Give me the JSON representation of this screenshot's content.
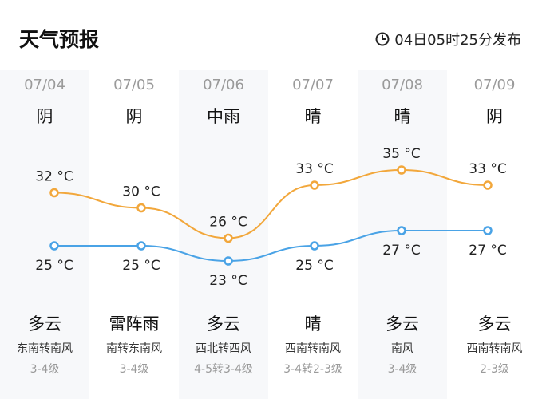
{
  "header": {
    "title": "天气预报",
    "publish_time": "04日05时25分发布",
    "clock_icon": "clock-icon"
  },
  "colors": {
    "high_line": "#F2A73B",
    "low_line": "#4AA3E6"
  },
  "chart_data": {
    "type": "line",
    "x": [
      "07/04",
      "07/05",
      "07/06",
      "07/07",
      "07/08",
      "07/09"
    ],
    "series": [
      {
        "values": [
          32,
          30,
          26,
          33,
          35,
          33
        ],
        "labels": [
          "32 °C",
          "30 °C",
          "26 °C",
          "33 °C",
          "35 °C",
          "33 °C"
        ]
      },
      {
        "values": [
          25,
          25,
          23,
          25,
          27,
          27
        ],
        "labels": [
          "25 °C",
          "25 °C",
          "23 °C",
          "25 °C",
          "27 °C",
          "27 °C"
        ]
      }
    ],
    "grid": false,
    "legend": "none"
  },
  "days": [
    {
      "date": "07/04",
      "day_weather": "阴",
      "night_weather": "多云",
      "wind": "东南转南风",
      "level": "3-4级"
    },
    {
      "date": "07/05",
      "day_weather": "阴",
      "night_weather": "雷阵雨",
      "wind": "南转东南风",
      "level": "3-4级"
    },
    {
      "date": "07/06",
      "day_weather": "中雨",
      "night_weather": "多云",
      "wind": "西北转西风",
      "level": "4-5转3-4级"
    },
    {
      "date": "07/07",
      "day_weather": "晴",
      "night_weather": "晴",
      "wind": "西南转南风",
      "level": "3-4转2-3级"
    },
    {
      "date": "07/08",
      "day_weather": "晴",
      "night_weather": "多云",
      "wind": "南风",
      "level": "3-4级"
    },
    {
      "date": "07/09",
      "day_weather": "阴",
      "night_weather": "多云",
      "wind": "西南转南风",
      "level": "2-3级"
    }
  ]
}
